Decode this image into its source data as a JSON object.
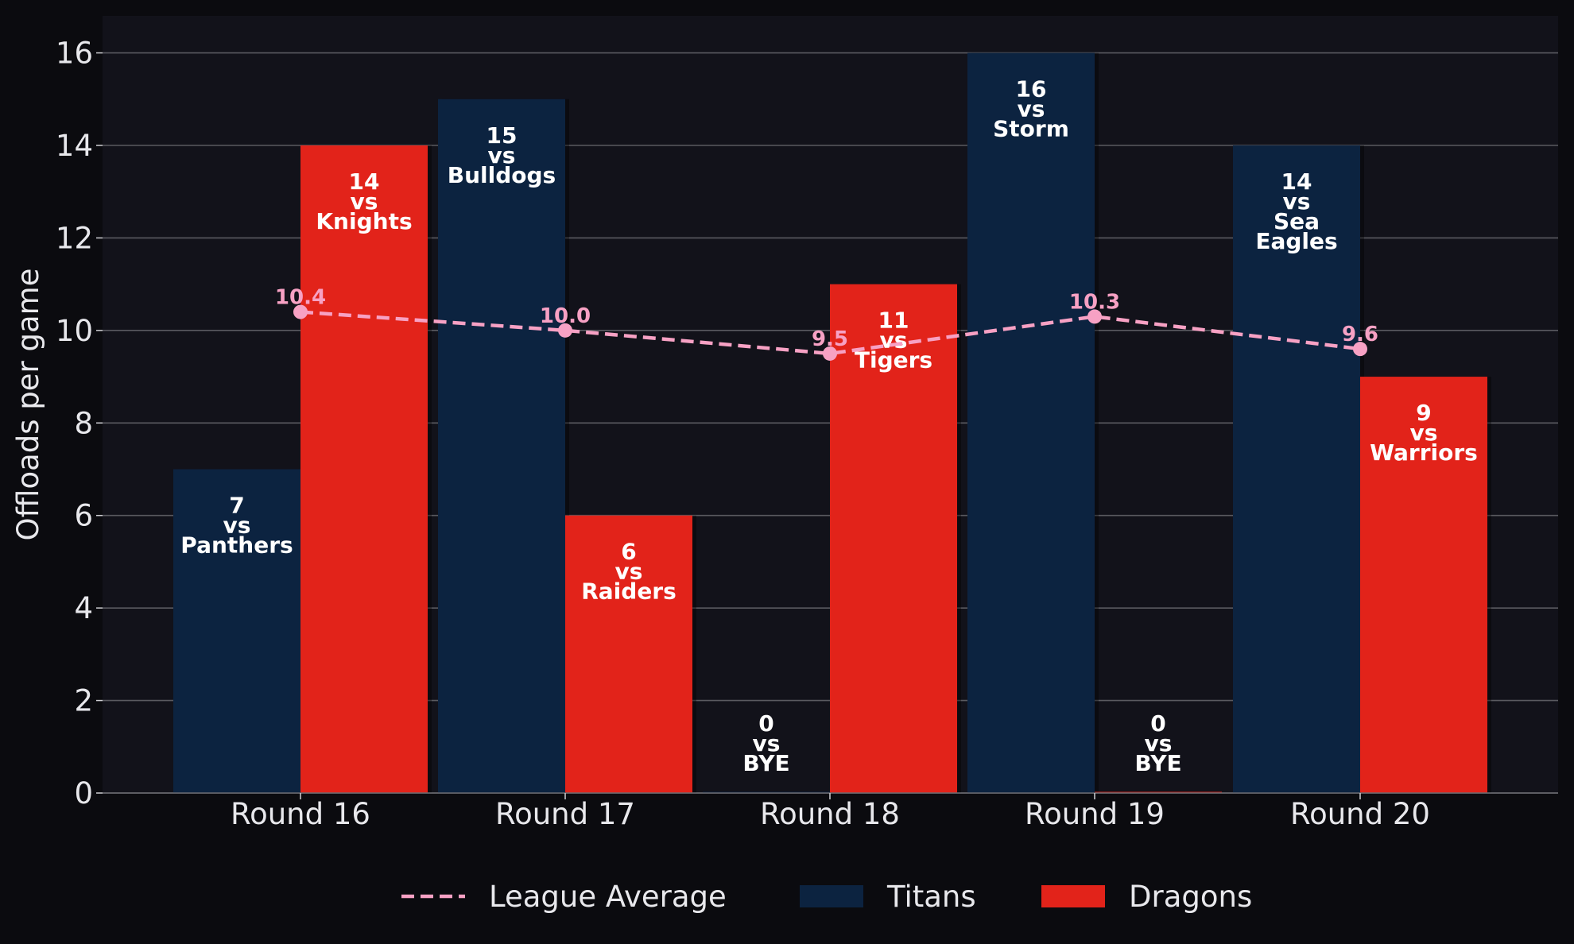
{
  "chart_data": {
    "type": "bar",
    "categories": [
      "Round 16",
      "Round 17",
      "Round 18",
      "Round 19",
      "Round 20"
    ],
    "ylabel": "Offloads per game",
    "xlabel": "",
    "ylim": [
      0,
      16.8
    ],
    "yticks": [
      0,
      2,
      4,
      6,
      8,
      10,
      12,
      14,
      16
    ],
    "grid": "horizontal",
    "legend_position": "bottom",
    "series": [
      {
        "name": "Titans",
        "color": "#0c2340",
        "values": [
          7,
          15,
          0,
          16,
          14
        ],
        "opponents": [
          "Panthers",
          "Bulldogs",
          "BYE",
          "Storm",
          "Sea Eagles"
        ]
      },
      {
        "name": "Dragons",
        "color": "#e2231a",
        "values": [
          14,
          6,
          11,
          0,
          9
        ],
        "opponents": [
          "Knights",
          "Raiders",
          "Tigers",
          "BYE",
          "Warriors"
        ]
      }
    ],
    "line_series": {
      "name": "League Average",
      "color": "#f7a1c4",
      "style": "dashed",
      "values": [
        10.4,
        10.0,
        9.5,
        10.3,
        9.6
      ],
      "labels": [
        "10.4",
        "10.0",
        "9.5",
        "10.3",
        "9.6"
      ]
    },
    "bar_label_connector": "vs",
    "legend": [
      "League Average",
      "Titans",
      "Dragons"
    ]
  }
}
